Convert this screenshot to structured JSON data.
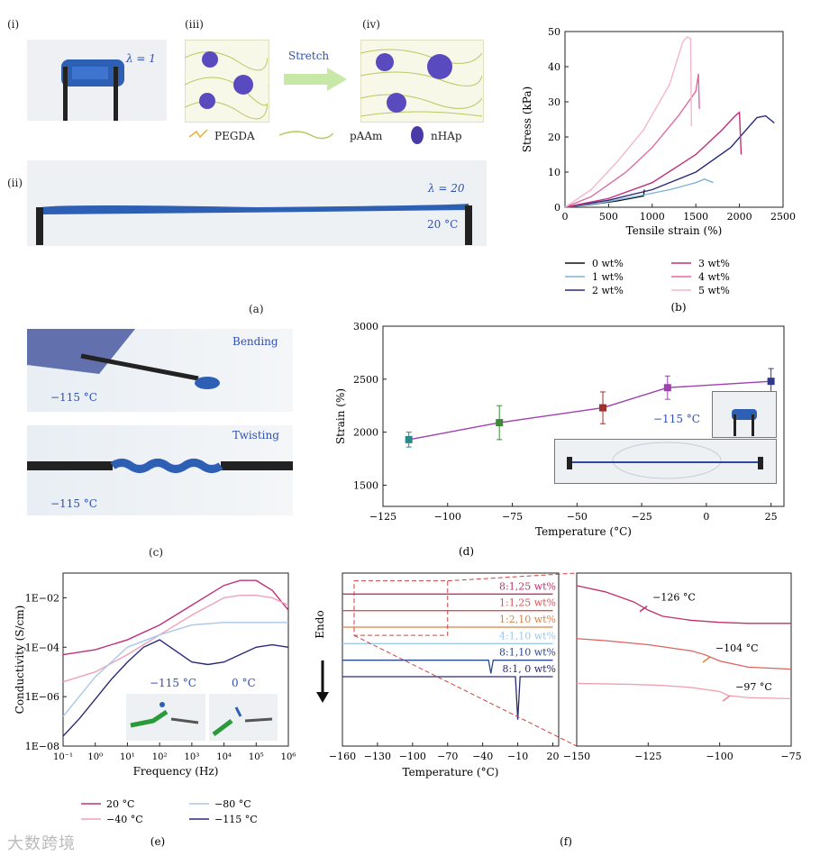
{
  "panel_a": {
    "sub_i": "(i)",
    "sub_ii": "(ii)",
    "sub_iii": "(iii)",
    "sub_iv": "(iv)",
    "lambda1": "λ = 1",
    "lambda20": "λ = 20",
    "temp": "20 °C",
    "stretch": "Stretch",
    "legend_pegda": "PEGDA",
    "legend_paam": "pAAm",
    "legend_nhap": "nHAp",
    "caption": "(a)"
  },
  "panel_c": {
    "bending": "Bending",
    "twisting": "Twisting",
    "temp1": "−115 °C",
    "temp2": "−115 °C",
    "caption": "(c)"
  },
  "panel_e_insets": {
    "t1": "−115 °C",
    "t2": "0 °C"
  },
  "panel_d_insets": {
    "t": "−115 °C"
  },
  "watermark": "大数跨境",
  "chart_data": [
    {
      "id": "b",
      "type": "line",
      "caption": "(b)",
      "xlabel": "Tensile strain (%)",
      "ylabel": "Stress (kPa)",
      "xlim": [
        0,
        2500
      ],
      "ylim": [
        0,
        50
      ],
      "xticks": [
        "0",
        "500",
        "1000",
        "1500",
        "2000",
        "2500"
      ],
      "yticks": [
        "0",
        "10",
        "20",
        "30",
        "40",
        "50"
      ],
      "series": [
        {
          "name": "0 wt%",
          "color": "#111111",
          "x": [
            0,
            300,
            600,
            900,
            910
          ],
          "y": [
            0,
            0.8,
            1.8,
            3.2,
            5
          ]
        },
        {
          "name": "1 wt%",
          "color": "#7fb4d6",
          "x": [
            0,
            400,
            800,
            1200,
            1500,
            1600,
            1700
          ],
          "y": [
            0,
            1.2,
            3,
            5,
            7,
            8,
            7
          ]
        },
        {
          "name": "2 wt%",
          "color": "#2a2a7a",
          "x": [
            0,
            500,
            1000,
            1500,
            1900,
            2200,
            2300,
            2400
          ],
          "y": [
            0,
            2,
            5,
            10,
            17,
            25.5,
            26,
            24
          ]
        },
        {
          "name": "3 wt%",
          "color": "#c0307a",
          "x": [
            0,
            500,
            1000,
            1500,
            1800,
            1950,
            2000,
            2020
          ],
          "y": [
            0,
            2.5,
            7,
            15,
            22,
            26,
            27,
            15
          ]
        },
        {
          "name": "4 wt%",
          "color": "#e06aa2",
          "x": [
            0,
            300,
            700,
            1000,
            1300,
            1500,
            1530,
            1540
          ],
          "y": [
            0,
            3,
            10,
            17,
            26,
            33,
            38,
            28
          ]
        },
        {
          "name": "5 wt%",
          "color": "#f4b6cc",
          "x": [
            0,
            300,
            600,
            900,
            1200,
            1350,
            1400,
            1440,
            1450
          ],
          "y": [
            0,
            5,
            13,
            22,
            35,
            47,
            48.5,
            48,
            23
          ]
        }
      ],
      "legend": [
        "0 wt%",
        "1 wt%",
        "2 wt%",
        "3 wt%",
        "4 wt%",
        "5 wt%"
      ]
    },
    {
      "id": "d",
      "type": "scatter",
      "caption": "(d)",
      "xlabel": "Temperature (°C)",
      "ylabel": "Strain (%)",
      "xlim": [
        -125,
        30
      ],
      "ylim": [
        1300,
        3000
      ],
      "xticks": [
        "−125",
        "−100",
        "−75",
        "−50",
        "−25",
        "0",
        "25"
      ],
      "yticks": [
        "1500",
        "2000",
        "2500",
        "3000"
      ],
      "x": [
        -115,
        -80,
        -40,
        -15,
        25
      ],
      "y": [
        1930,
        2090,
        2230,
        2420,
        2480
      ],
      "err": [
        70,
        160,
        150,
        110,
        120
      ],
      "colors": [
        "#2a8a8a",
        "#3a8a3a",
        "#a03030",
        "#a040b0",
        "#303a8a"
      ]
    },
    {
      "id": "e",
      "type": "line",
      "caption": "(e)",
      "xlabel": "Frequency (Hz)",
      "ylabel": "Conductivity (S/cm)",
      "xscale": "log",
      "yscale": "log",
      "xlim": [
        -1,
        6
      ],
      "ylim": [
        -8,
        -1
      ],
      "xticks": [
        "10⁻¹",
        "10⁰",
        "10¹",
        "10²",
        "10³",
        "10⁴",
        "10⁵",
        "10⁶"
      ],
      "yticks": [
        "1E−08",
        "1E−06",
        "1E−04",
        "1E−02"
      ],
      "series": [
        {
          "name": "20 °C",
          "color": "#c0307a",
          "x": [
            -1,
            0,
            1,
            2,
            3,
            4,
            4.5,
            5,
            5.5,
            6
          ],
          "y": [
            -4.3,
            -4.1,
            -3.7,
            -3.1,
            -2.3,
            -1.5,
            -1.3,
            -1.3,
            -1.7,
            -2.5
          ]
        },
        {
          "name": "−40 °C",
          "color": "#f0a0b8",
          "x": [
            -1,
            0,
            1,
            2,
            3,
            4,
            4.5,
            5,
            5.5,
            6
          ],
          "y": [
            -5.4,
            -5,
            -4.3,
            -3.5,
            -2.7,
            -2,
            -1.9,
            -1.9,
            -2,
            -2.3
          ]
        },
        {
          "name": "−80 °C",
          "color": "#a8c8e8",
          "x": [
            -1,
            -0.5,
            0,
            1,
            2,
            3,
            4,
            5,
            6
          ],
          "y": [
            -6.8,
            -6,
            -5.2,
            -4,
            -3.5,
            -3.1,
            -3,
            -3,
            -3
          ]
        },
        {
          "name": "−115 °C",
          "color": "#2a2a7a",
          "x": [
            -1,
            -0.5,
            0,
            0.5,
            1,
            1.5,
            2,
            3,
            3.5,
            4,
            4.5,
            5,
            5.5,
            6
          ],
          "y": [
            -7.6,
            -6.9,
            -6.1,
            -5.3,
            -4.6,
            -4,
            -3.7,
            -4.6,
            -4.7,
            -4.6,
            -4.3,
            -4,
            -3.9,
            -4
          ]
        }
      ],
      "legend": [
        "20 °C",
        "−40 °C",
        "−80 °C",
        "−115 °C"
      ]
    },
    {
      "id": "f_left",
      "type": "line",
      "caption": "(f)",
      "xlabel": "Temperature (°C)",
      "ylabel": "Endo",
      "xlim": [
        -160,
        25
      ],
      "xticks": [
        "−160",
        "−130",
        "−100",
        "−70",
        "−40",
        "−10",
        "20"
      ],
      "series": [
        {
          "name": "8:1,25 wt%",
          "color": "#c0306a",
          "x": [
            -160,
            20
          ],
          "y": [
            6,
            6
          ]
        },
        {
          "name": "1:1,25 wt%",
          "color": "#e05050",
          "x": [
            -160,
            20
          ],
          "y": [
            5,
            5
          ]
        },
        {
          "name": "1:2,10 wt%",
          "color": "#e08040",
          "x": [
            -160,
            20
          ],
          "y": [
            4,
            4
          ]
        },
        {
          "name": "4:1,10 wt%",
          "color": "#a0c8e8",
          "x": [
            -160,
            20
          ],
          "y": [
            3,
            3
          ]
        },
        {
          "name": "8:1,10 wt%",
          "color": "#2a4a8a",
          "x": [
            -160,
            -35,
            -33,
            -31,
            20
          ],
          "y": [
            2,
            2,
            1.2,
            2,
            2
          ]
        },
        {
          "name": "8:1, 0 wt%",
          "color": "#2a2a6a",
          "x": [
            -160,
            -12,
            -10,
            -8,
            20
          ],
          "y": [
            1,
            1,
            -1.6,
            1,
            1
          ]
        }
      ]
    },
    {
      "id": "f_right",
      "type": "line",
      "xlim": [
        -150,
        -75
      ],
      "xticks": [
        "−150",
        "−125",
        "−100",
        "−75"
      ],
      "series": [
        {
          "name": "8:1,25 wt%",
          "color": "#c0306a",
          "x": [
            -150,
            -140,
            -130,
            -125,
            -120,
            -110,
            -100,
            -90,
            -75
          ],
          "y": [
            5.2,
            4.9,
            4.4,
            4,
            3.7,
            3.5,
            3.4,
            3.35,
            3.35
          ]
        },
        {
          "name": "1:1,25 wt%",
          "color": "#e06060",
          "x": [
            -150,
            -140,
            -125,
            -120,
            -110,
            -105,
            -100,
            -90,
            -75
          ],
          "y": [
            2.6,
            2.5,
            2.3,
            2.2,
            2,
            1.8,
            1.5,
            1.2,
            1.1
          ]
        },
        {
          "name": "1:2,10 wt%",
          "color": "#f0a0b0",
          "x": [
            -150,
            -130,
            -120,
            -110,
            -100,
            -97,
            -90,
            -75
          ],
          "y": [
            0.4,
            0.35,
            0.3,
            0.2,
            0,
            -0.2,
            -0.3,
            -0.35
          ]
        }
      ],
      "annotations": [
        "−126 °C",
        "−104 °C",
        "−97 °C"
      ]
    }
  ]
}
